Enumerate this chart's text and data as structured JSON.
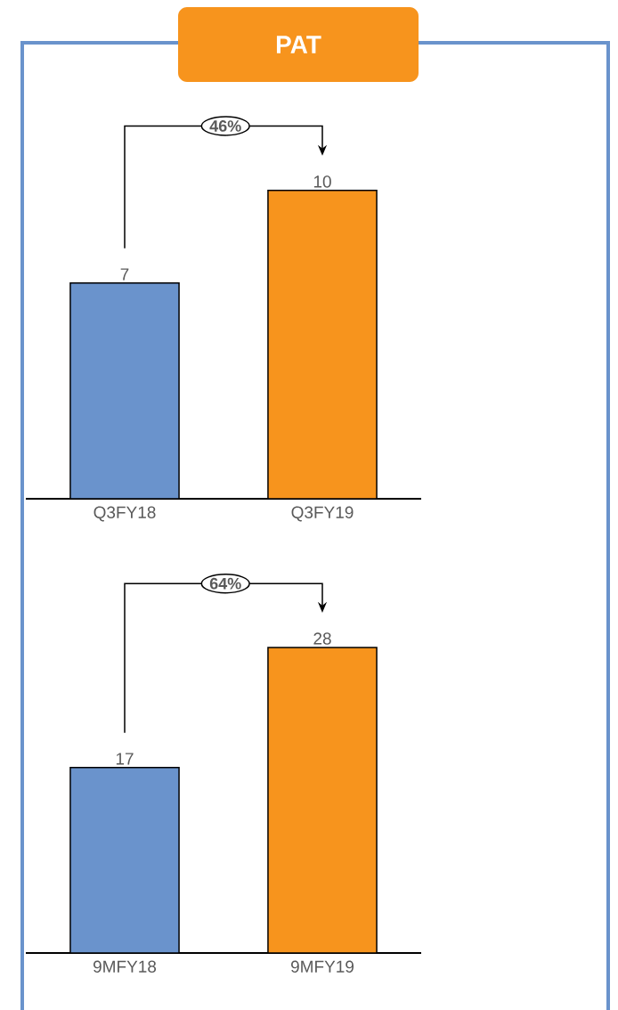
{
  "chart_data": [
    {
      "type": "bar",
      "title": "PAT",
      "categories": [
        "Q3FY18",
        "Q3FY19"
      ],
      "values": [
        7,
        10
      ],
      "colors": [
        "#6a93cc",
        "#f7941d"
      ],
      "data_labels": true,
      "annotations": [
        "46%"
      ]
    },
    {
      "type": "bar",
      "categories": [
        "9MFY18",
        "9MFY19"
      ],
      "values": [
        17,
        28
      ],
      "colors": [
        "#6a93cc",
        "#f7941d"
      ],
      "data_labels": true,
      "annotations": [
        "64%"
      ]
    }
  ]
}
